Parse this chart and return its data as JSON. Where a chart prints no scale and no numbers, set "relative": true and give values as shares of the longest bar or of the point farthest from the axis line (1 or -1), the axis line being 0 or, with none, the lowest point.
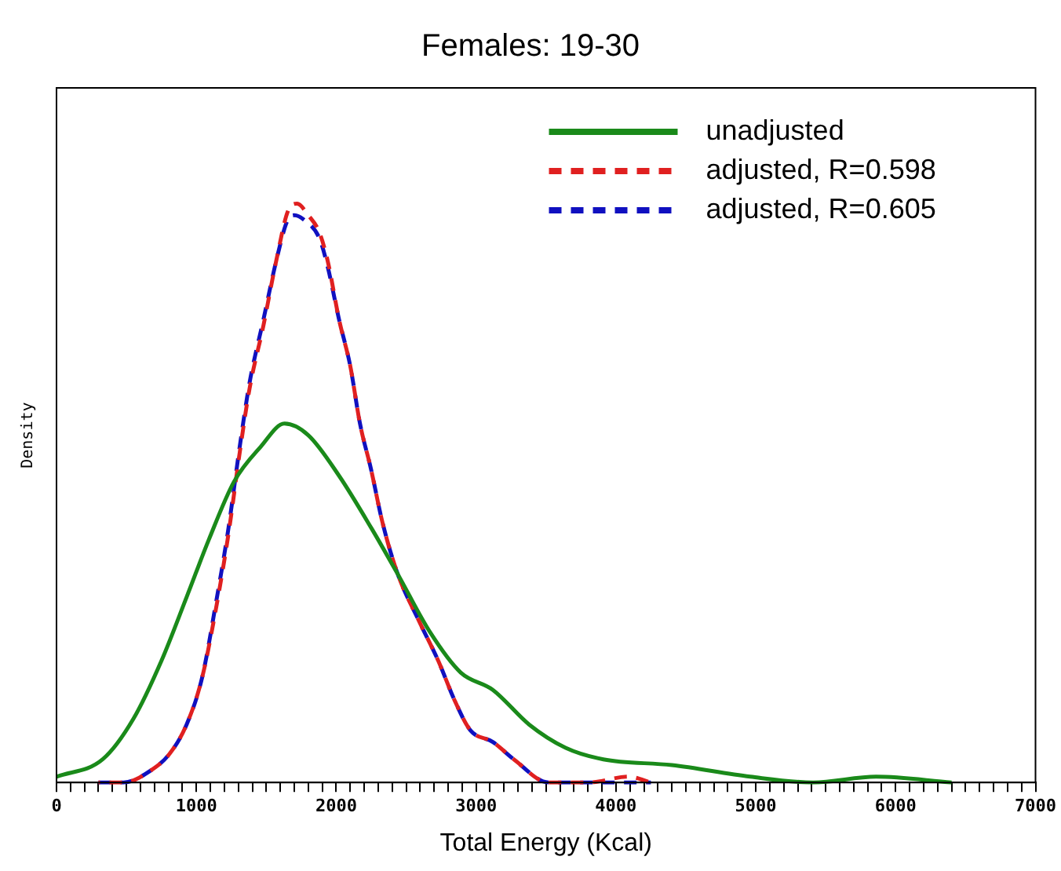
{
  "chart_data": {
    "type": "line",
    "title": "Females: 19-30",
    "xlabel": "Total Energy (Kcal)",
    "ylabel": "Density",
    "relative": true,
    "xlim": [
      0,
      7000
    ],
    "xticks": [
      0,
      {
        "value": 100,
        "label": null
      },
      {
        "value": 200,
        "label": null
      },
      {
        "value": 300,
        "label": null
      },
      {
        "value": 400,
        "label": null
      },
      {
        "value": 500,
        "label": null
      },
      {
        "value": 600,
        "label": null
      },
      {
        "value": 700,
        "label": null
      },
      {
        "value": 800,
        "label": null
      },
      {
        "value": 900,
        "label": null
      },
      1000,
      {
        "value": 1100,
        "label": null
      },
      {
        "value": 1200,
        "label": null
      },
      {
        "value": 1300,
        "label": null
      },
      {
        "value": 1400,
        "label": null
      },
      {
        "value": 1500,
        "label": null
      },
      {
        "value": 1600,
        "label": null
      },
      {
        "value": 1700,
        "label": null
      },
      {
        "value": 1800,
        "label": null
      },
      {
        "value": 1900,
        "label": null
      },
      2000,
      {
        "value": 2100,
        "label": null
      },
      {
        "value": 2200,
        "label": null
      },
      {
        "value": 2300,
        "label": null
      },
      {
        "value": 2400,
        "label": null
      },
      {
        "value": 2500,
        "label": null
      },
      {
        "value": 2600,
        "label": null
      },
      {
        "value": 2700,
        "label": null
      },
      {
        "value": 2800,
        "label": null
      },
      {
        "value": 2900,
        "label": null
      },
      3000,
      {
        "value": 3100,
        "label": null
      },
      {
        "value": 3200,
        "label": null
      },
      {
        "value": 3300,
        "label": null
      },
      {
        "value": 3400,
        "label": null
      },
      {
        "value": 3500,
        "label": null
      },
      {
        "value": 3600,
        "label": null
      },
      {
        "value": 3700,
        "label": null
      },
      {
        "value": 3800,
        "label": null
      },
      {
        "value": 3900,
        "label": null
      },
      4000,
      {
        "value": 4100,
        "label": null
      },
      {
        "value": 4200,
        "label": null
      },
      {
        "value": 4300,
        "label": null
      },
      {
        "value": 4400,
        "label": null
      },
      {
        "value": 4500,
        "label": null
      },
      {
        "value": 4600,
        "label": null
      },
      {
        "value": 4700,
        "label": null
      },
      {
        "value": 4800,
        "label": null
      },
      {
        "value": 4900,
        "label": null
      },
      5000,
      {
        "value": 5100,
        "label": null
      },
      {
        "value": 5200,
        "label": null
      },
      {
        "value": 5300,
        "label": null
      },
      {
        "value": 5400,
        "label": null
      },
      {
        "value": 5500,
        "label": null
      },
      {
        "value": 5600,
        "label": null
      },
      {
        "value": 5700,
        "label": null
      },
      {
        "value": 5800,
        "label": null
      },
      {
        "value": 5900,
        "label": null
      },
      6000,
      {
        "value": 6100,
        "label": null
      },
      {
        "value": 6200,
        "label": null
      },
      {
        "value": 6300,
        "label": null
      },
      {
        "value": 6400,
        "label": null
      },
      {
        "value": 6500,
        "label": null
      },
      {
        "value": 6600,
        "label": null
      },
      {
        "value": 6700,
        "label": null
      },
      {
        "value": 6800,
        "label": null
      },
      {
        "value": 6900,
        "label": null
      },
      7000
    ],
    "legend": "top right",
    "grid": false,
    "marker": "none",
    "series": [
      {
        "name": "unadjusted",
        "color": "#1a8a1a",
        "line_style": "solid",
        "x": [
          0,
          330,
          550,
          750,
          930,
          1090,
          1270,
          1460,
          1630,
          1800,
          2020,
          2250,
          2440,
          2670,
          2890,
          3120,
          3380,
          3640,
          3910,
          4400,
          4960,
          5410,
          5860,
          6400
        ],
        "values": [
          0.01,
          0.04,
          0.11,
          0.21,
          0.32,
          0.42,
          0.52,
          0.58,
          0.62,
          0.6,
          0.53,
          0.44,
          0.36,
          0.26,
          0.19,
          0.16,
          0.1,
          0.06,
          0.04,
          0.03,
          0.01,
          0.0,
          0.01,
          0.0
        ]
      },
      {
        "name": "adjusted, R=0.598",
        "color": "#e02020",
        "line_style": "dashed",
        "x": [
          300,
          480,
          670,
          810,
          930,
          1040,
          1140,
          1230,
          1310,
          1380,
          1480,
          1570,
          1660,
          1720,
          1800,
          1880,
          1940,
          2020,
          2100,
          2170,
          2250,
          2330,
          2440,
          2590,
          2730,
          2850,
          2960,
          3120,
          3270,
          3520,
          3800,
          4090,
          4250
        ],
        "values": [
          0.0,
          0.0,
          0.02,
          0.05,
          0.1,
          0.18,
          0.3,
          0.43,
          0.57,
          0.68,
          0.79,
          0.9,
          0.99,
          1.0,
          0.98,
          0.95,
          0.9,
          0.8,
          0.72,
          0.62,
          0.54,
          0.45,
          0.36,
          0.28,
          0.21,
          0.14,
          0.09,
          0.07,
          0.04,
          0.0,
          0.0,
          0.01,
          0.0
        ]
      },
      {
        "name": "adjusted, R=0.605",
        "color": "#1010c0",
        "line_style": "dashed",
        "x": [
          300,
          480,
          670,
          810,
          930,
          1040,
          1140,
          1230,
          1310,
          1380,
          1480,
          1570,
          1650,
          1700,
          1780,
          1880,
          1940,
          2020,
          2100,
          2170,
          2250,
          2330,
          2440,
          2590,
          2730,
          2850,
          2960,
          3120,
          3270,
          3520,
          3800,
          4090,
          4250
        ],
        "values": [
          0.0,
          0.0,
          0.02,
          0.05,
          0.1,
          0.18,
          0.31,
          0.44,
          0.58,
          0.69,
          0.8,
          0.9,
          0.97,
          0.98,
          0.97,
          0.94,
          0.89,
          0.8,
          0.72,
          0.62,
          0.54,
          0.45,
          0.36,
          0.28,
          0.21,
          0.14,
          0.09,
          0.07,
          0.04,
          0.0,
          0.0,
          0.0,
          0.0
        ]
      }
    ]
  }
}
